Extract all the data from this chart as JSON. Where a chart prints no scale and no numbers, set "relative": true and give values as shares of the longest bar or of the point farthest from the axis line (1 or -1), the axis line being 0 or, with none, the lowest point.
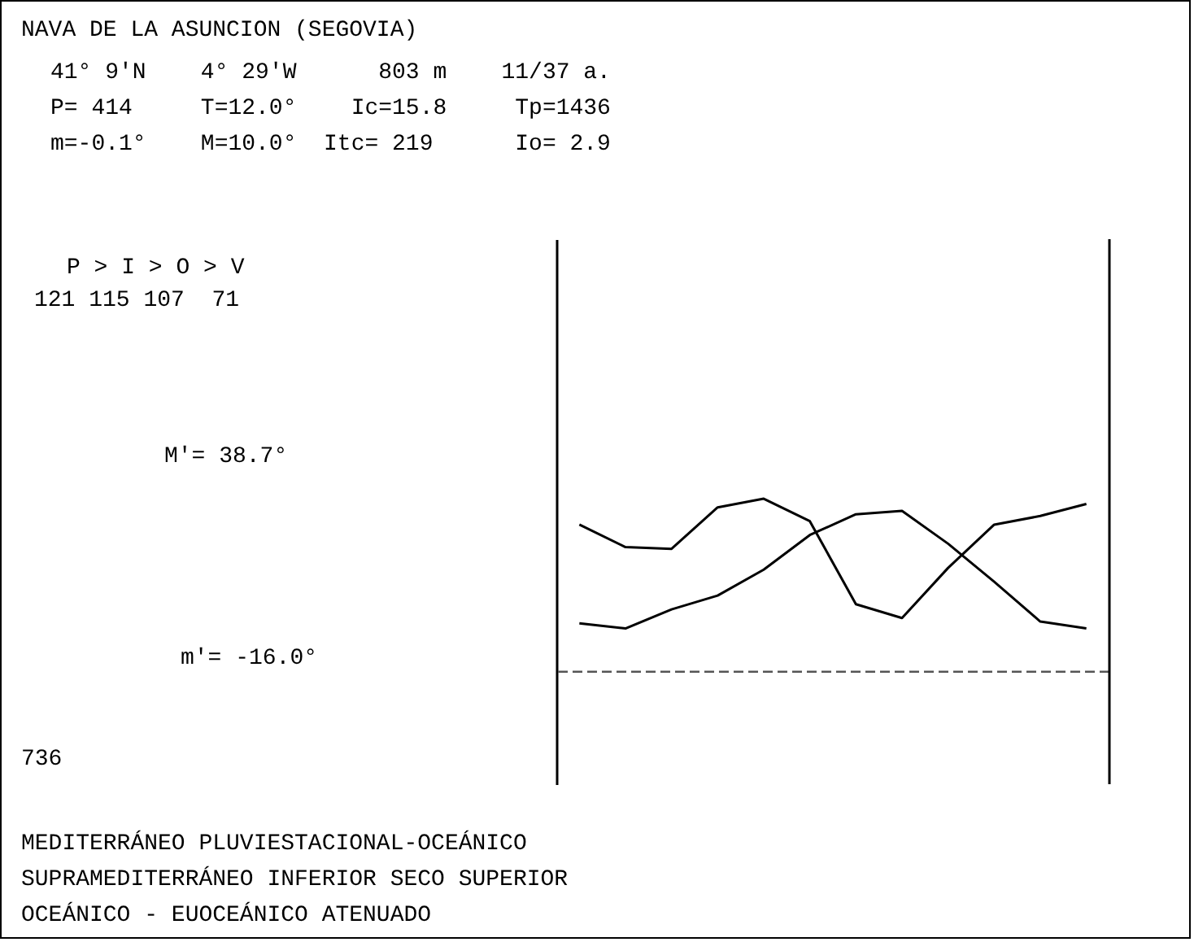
{
  "chart_data": {
    "type": "line",
    "relative": true,
    "title": "NAVA DE LA ASUNCION (SEGOVIA)",
    "annotations": [
      "41° 9'N    4° 29'W      803 m    11/37 a.",
      "P= 414     T=12.0°    Ic=15.8     Tp=1436",
      "m=-0.1°    M=10.0°  Itc= 219      Io= 2.9",
      "P > I > O > V",
      "121 115 107  71",
      "M'= 38.7°",
      "m'= -16.0°",
      "736",
      "MEDITERRÁNEO PLUVIESTACIONAL-OCEÁNICO",
      "SUPRAMEDITERRÁNEO INFERIOR SECO SUPERIOR",
      "OCEÁNICO - EUOCEÁNICO ATENUADO"
    ],
    "categories": [
      null,
      null,
      null,
      null,
      null,
      null,
      null,
      null,
      null,
      null,
      null,
      null
    ],
    "series": [
      {
        "color": "#000000",
        "values": [
          0.85,
          0.72,
          0.71,
          0.95,
          1,
          0.87,
          0.39,
          0.31,
          0.6,
          0.85,
          0.9,
          0.97
        ]
      },
      {
        "color": "#000000",
        "values": [
          0.28,
          0.25,
          0.36,
          0.44,
          0.59,
          0.79,
          0.91,
          0.93,
          0.74,
          0.52,
          0.29,
          0.25
        ]
      }
    ],
    "ref_lines": [
      {
        "axis": "y",
        "value": 0,
        "line_style": "dashed"
      }
    ],
    "marker": "none",
    "line_style": "solid",
    "grid": false
  }
}
